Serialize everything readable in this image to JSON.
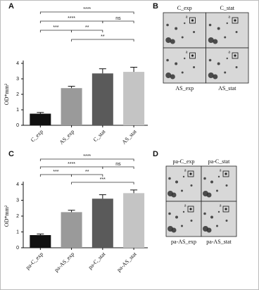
{
  "chart_data": [
    {
      "type": "bar",
      "panel": "A",
      "y_label": "OD*mm²",
      "categories": [
        "C_exp",
        "AS_exp",
        "C_stat",
        "AS_stat"
      ],
      "values": [
        0.75,
        2.4,
        3.35,
        3.45
      ],
      "errors": [
        0.08,
        0.12,
        0.3,
        0.3
      ],
      "colors": [
        "#111111",
        "#9a9a9a",
        "#5a5a5a",
        "#c4c4c4"
      ],
      "ylim": [
        0,
        4
      ],
      "yticks": [
        0,
        1,
        2,
        3,
        4
      ],
      "significance": [
        "****",
        "****",
        "ns",
        "***",
        "**",
        "**"
      ]
    },
    {
      "type": "bar",
      "panel": "C",
      "y_label": "OD*mm²",
      "categories": [
        "pa-C_exp",
        "pa-AS_exp",
        "pa-C_stat",
        "pa-AS_stat"
      ],
      "values": [
        0.8,
        2.25,
        3.1,
        3.45
      ],
      "errors": [
        0.07,
        0.12,
        0.25,
        0.2
      ],
      "colors": [
        "#111111",
        "#9a9a9a",
        "#5a5a5a",
        "#c4c4c4"
      ],
      "ylim": [
        0,
        4
      ],
      "yticks": [
        0,
        1,
        2,
        3,
        4
      ],
      "significance": [
        "****",
        "****",
        "ns",
        "***",
        "**",
        "***"
      ]
    }
  ],
  "images": [
    {
      "panel": "B",
      "labels": [
        "C_exp",
        "C_stat",
        "AS_exp",
        "AS_stat"
      ],
      "spot_label": "a"
    },
    {
      "panel": "D",
      "labels": [
        "pa-C_exp",
        "pa-C_stat",
        "pa-AS_exp",
        "pa-AS_stat"
      ],
      "spot_label": "a"
    }
  ]
}
